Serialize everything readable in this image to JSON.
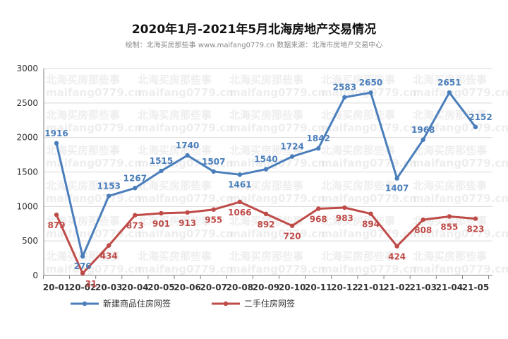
{
  "title": "2020年1月-2021年5月北海房地产交易情况",
  "subtitle": "绘制：北海买房那些事 www.maifang0779.cn  数据来源：北海市房地产交易中心",
  "watermark": {
    "line1": "北海买房那些事",
    "line2": "maifang0779.cn"
  },
  "colors": {
    "series1": "#4a7ebb",
    "series2": "#be4b48",
    "grid": "#d9d9d9",
    "axis": "#808080"
  },
  "chart_data": {
    "type": "line",
    "categories": [
      "20-01",
      "20-02",
      "20-03",
      "20-04",
      "20-05",
      "20-06",
      "20-07",
      "20-08",
      "20-09",
      "20-10",
      "20-11",
      "20-12",
      "21-01",
      "21-02",
      "21-03",
      "21-04",
      "21-05"
    ],
    "series": [
      {
        "name": "新建商品住房网签",
        "values": [
          1916,
          276,
          1153,
          1267,
          1515,
          1740,
          1507,
          1461,
          1540,
          1724,
          1842,
          2583,
          2650,
          1407,
          1968,
          2651,
          2152
        ]
      },
      {
        "name": "二手住房网签",
        "values": [
          879,
          31,
          434,
          873,
          901,
          913,
          955,
          1066,
          892,
          720,
          968,
          983,
          894,
          424,
          808,
          855,
          823
        ]
      }
    ],
    "ylim": [
      0,
      3000
    ],
    "yticks": [
      0,
      500,
      1000,
      1500,
      2000,
      2500,
      3000
    ],
    "grid": true,
    "legend": "bottom-left"
  }
}
